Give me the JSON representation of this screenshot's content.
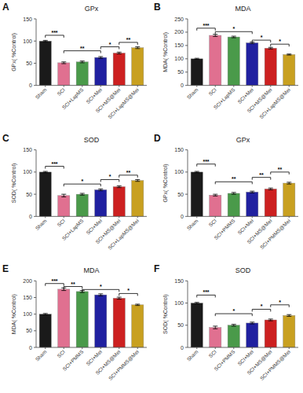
{
  "chart_data": [
    {
      "type": "bar",
      "panel_label": "A",
      "title": "GPx",
      "ylabel": "GPx( %Control)",
      "ylim": [
        0,
        150
      ],
      "yticks": [
        0,
        50,
        100,
        150
      ],
      "categories": [
        "Sham",
        "SCI",
        "SCI+LapMS",
        "SCI+Mei",
        "SCI+MS@Mei",
        "SCI+LapMS@Mei"
      ],
      "values": [
        100,
        51,
        53,
        63,
        73,
        85
      ],
      "errors": [
        1.5,
        2,
        2,
        2,
        2,
        2
      ],
      "colors": [
        "#1a1a1a",
        "#E07090",
        "#4a9a4a",
        "#2020a0",
        "#CC2020",
        "#C8A020"
      ],
      "annotations": [
        {
          "from": "Sham",
          "to": "SCI",
          "y": 113,
          "label": "***"
        },
        {
          "from": "SCI",
          "to": "SCI+Mei",
          "y": 78,
          "label": "**"
        },
        {
          "from": "SCI+Mei",
          "to": "SCI+MS@Mei",
          "y": 87,
          "label": "*"
        },
        {
          "from": "SCI+MS@Mei",
          "to": "SCI+LapMS@Mei",
          "y": 97,
          "label": "**"
        }
      ],
      "grid": false
    },
    {
      "type": "bar",
      "panel_label": "B",
      "title": "MDA",
      "ylabel": "MDA( %Control)",
      "ylim": [
        0,
        250
      ],
      "yticks": [
        0,
        50,
        100,
        150,
        200,
        250
      ],
      "categories": [
        "Sham",
        "SCI",
        "SCI+LapMS",
        "SCI+Mei",
        "SCI+MS@Mei",
        "SCI+LapMS@Mei"
      ],
      "values": [
        100,
        188,
        182,
        160,
        140,
        116
      ],
      "errors": [
        2,
        4,
        3,
        3,
        3,
        2
      ],
      "colors": [
        "#1a1a1a",
        "#E07090",
        "#4a9a4a",
        "#2020a0",
        "#CC2020",
        "#C8A020"
      ],
      "annotations": [
        {
          "from": "Sham",
          "to": "SCI",
          "y": 215,
          "label": "***"
        },
        {
          "from": "SCI",
          "to": "SCI+Mei",
          "y": 202,
          "label": "*"
        },
        {
          "from": "SCI+Mei",
          "to": "SCI+MS@Mei",
          "y": 170,
          "label": "*"
        },
        {
          "from": "SCI+MS@Mei",
          "to": "SCI+LapMS@Mei",
          "y": 155,
          "label": "*"
        }
      ],
      "grid": false
    },
    {
      "type": "bar",
      "panel_label": "C",
      "title": "SOD",
      "ylabel": "SOD( %Control)",
      "ylim": [
        0,
        150
      ],
      "yticks": [
        0,
        50,
        100,
        150
      ],
      "categories": [
        "Sham",
        "SCI",
        "SCI+LapMS",
        "SCI+Mei",
        "SCI+MS@Mei",
        "SCI+LapMS@Mei"
      ],
      "values": [
        100,
        47,
        50,
        60,
        67,
        81
      ],
      "errors": [
        1.5,
        3,
        2,
        2,
        2,
        2
      ],
      "colors": [
        "#1a1a1a",
        "#E07090",
        "#4a9a4a",
        "#2020a0",
        "#CC2020",
        "#C8A020"
      ],
      "annotations": [
        {
          "from": "Sham",
          "to": "SCI",
          "y": 113,
          "label": "***"
        },
        {
          "from": "SCI",
          "to": "SCI+Mei",
          "y": 73,
          "label": "*"
        },
        {
          "from": "SCI+Mei",
          "to": "SCI+MS@Mei",
          "y": 83,
          "label": "*"
        },
        {
          "from": "SCI+MS@Mei",
          "to": "SCI+LapMS@Mei",
          "y": 93,
          "label": "**"
        }
      ],
      "grid": false
    },
    {
      "type": "bar",
      "panel_label": "D",
      "title": "GPx",
      "ylabel": "GPx( %Control)",
      "ylim": [
        0,
        150
      ],
      "yticks": [
        0,
        50,
        100,
        150
      ],
      "categories": [
        "Sham",
        "SCI",
        "SCI+PMMS",
        "SCI+Mei",
        "SCI+MS@Mei",
        "SCI+PMMS@Mei"
      ],
      "values": [
        100,
        48,
        52,
        55,
        62,
        75
      ],
      "errors": [
        1.5,
        2,
        2,
        2,
        2,
        2
      ],
      "colors": [
        "#1a1a1a",
        "#E07090",
        "#4a9a4a",
        "#2020a0",
        "#CC2020",
        "#C8A020"
      ],
      "annotations": [
        {
          "from": "Sham",
          "to": "SCI",
          "y": 118,
          "label": "***"
        },
        {
          "from": "SCI",
          "to": "SCI+Mei",
          "y": 78,
          "label": "**"
        },
        {
          "from": "SCI+Mei",
          "to": "SCI+MS@Mei",
          "y": 88,
          "label": "**"
        },
        {
          "from": "SCI+MS@Mei",
          "to": "SCI+PMMS@Mei",
          "y": 100,
          "label": "**"
        }
      ],
      "grid": false
    },
    {
      "type": "bar",
      "panel_label": "E",
      "title": "MDA",
      "ylabel": "MDA( %Control)",
      "ylim": [
        0,
        200
      ],
      "yticks": [
        0,
        50,
        100,
        150,
        200
      ],
      "categories": [
        "Sham",
        "SCI",
        "SCI+PMMS",
        "SCI+Mei",
        "SCI+MS@Mei",
        "SCI+PMMS@Mei"
      ],
      "values": [
        100,
        175,
        168,
        158,
        148,
        128
      ],
      "errors": [
        2,
        4,
        3,
        3,
        3,
        2
      ],
      "colors": [
        "#1a1a1a",
        "#E07090",
        "#4a9a4a",
        "#2020a0",
        "#CC2020",
        "#C8A020"
      ],
      "annotations": [
        {
          "from": "Sham",
          "to": "SCI",
          "y": 192,
          "label": "***"
        },
        {
          "from": "SCI",
          "to": "SCI+PMMS",
          "y": 183,
          "label": "**"
        },
        {
          "from": "SCI+PMMS",
          "to": "SCI+MS@Mei",
          "y": 174,
          "label": "*"
        },
        {
          "from": "SCI+MS@Mei",
          "to": "SCI+PMMS@Mei",
          "y": 162,
          "label": "*"
        }
      ],
      "grid": false
    },
    {
      "type": "bar",
      "panel_label": "F",
      "title": "SOD",
      "ylabel": "SOD( %Control)",
      "ylim": [
        0,
        150
      ],
      "yticks": [
        0,
        50,
        100,
        150
      ],
      "categories": [
        "Sham",
        "SCI",
        "SCI+PMMS",
        "SCI+Mei",
        "SCI+MS@Mei",
        "SCI+PMMS@Mei"
      ],
      "values": [
        100,
        45,
        50,
        55,
        62,
        72
      ],
      "errors": [
        1.5,
        3,
        2,
        2,
        2,
        2
      ],
      "colors": [
        "#1a1a1a",
        "#E07090",
        "#4a9a4a",
        "#2020a0",
        "#CC2020",
        "#C8A020"
      ],
      "annotations": [
        {
          "from": "Sham",
          "to": "SCI",
          "y": 118,
          "label": "***"
        },
        {
          "from": "SCI",
          "to": "SCI+Mei",
          "y": 76,
          "label": "*"
        },
        {
          "from": "SCI+Mei",
          "to": "SCI+MS@Mei",
          "y": 86,
          "label": "*"
        },
        {
          "from": "SCI+MS@Mei",
          "to": "SCI+PMMS@Mei",
          "y": 96,
          "label": "*"
        }
      ],
      "grid": false
    }
  ]
}
